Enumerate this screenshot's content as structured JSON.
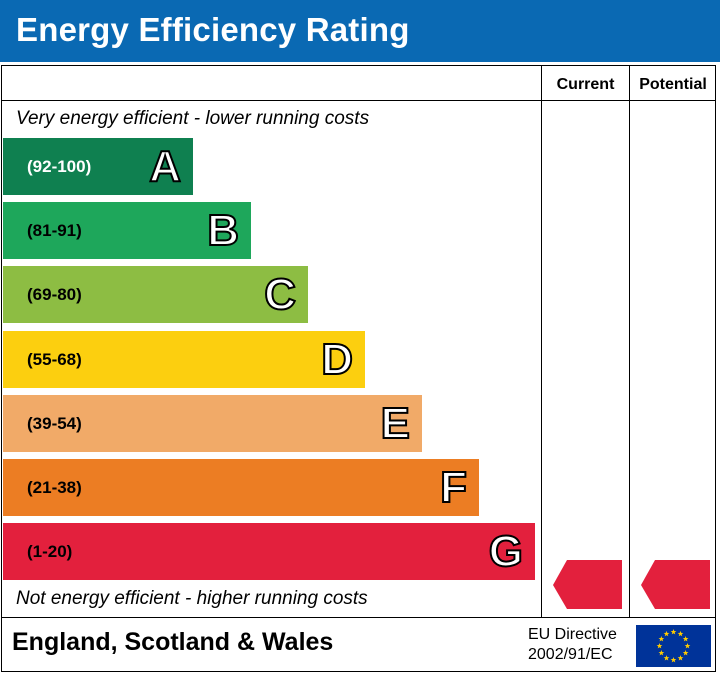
{
  "header": {
    "title": "Energy Efficiency Rating"
  },
  "columns": {
    "current": "Current",
    "potential": "Potential"
  },
  "notes": {
    "top": "Very energy efficient - lower running costs",
    "bottom": "Not energy efficient - higher running costs"
  },
  "colors": {
    "header": "#0a69b3",
    "A": "#0f8050",
    "B": "#1ea75b",
    "C": "#8dbd43",
    "D": "#fccf0f",
    "E": "#f1aa68",
    "F": "#ec7d23",
    "G": "#e3203d",
    "indicator": "#e3203d"
  },
  "chart_data": {
    "type": "bar",
    "title": "Energy Efficiency Rating",
    "categories": [
      "(92-100)",
      "(81-91)",
      "(69-80)",
      "(55-68)",
      "(39-54)",
      "(21-38)",
      "(1-20)"
    ],
    "bands": [
      {
        "range": "(92-100)",
        "letter": "A",
        "color": "#0f8050"
      },
      {
        "range": "(81-91)",
        "letter": "B",
        "color": "#1ea75b"
      },
      {
        "range": "(69-80)",
        "letter": "C",
        "color": "#8dbd43"
      },
      {
        "range": "(55-68)",
        "letter": "D",
        "color": "#fccf0f"
      },
      {
        "range": "(39-54)",
        "letter": "E",
        "color": "#f1aa68"
      },
      {
        "range": "(21-38)",
        "letter": "F",
        "color": "#ec7d23"
      },
      {
        "range": "(1-20)",
        "letter": "G",
        "color": "#e3203d"
      }
    ],
    "current": {
      "band": "G",
      "value": ""
    },
    "potential": {
      "band": "G",
      "value": ""
    }
  },
  "footer": {
    "region": "England, Scotland & Wales",
    "directive_line1": "EU Directive",
    "directive_line2": "2002/91/EC",
    "flag_icon": "eu-flag-icon"
  }
}
